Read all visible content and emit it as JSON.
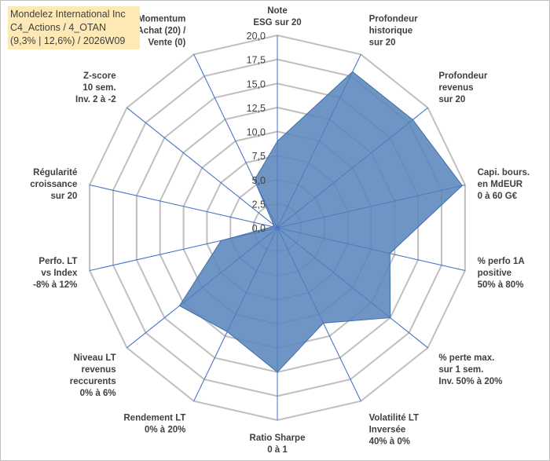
{
  "header": {
    "line1": "Mondelez International Inc",
    "line2": "C4_Actions / 4_OTAN",
    "line3": "(9,3% | 12,6%) / 2026W09"
  },
  "colors": {
    "fill": "#5b86bd",
    "stroke": "#3f6fa8",
    "grid": "#bfbfbf",
    "spoke": "#4472c4",
    "text": "#404040",
    "title_bg": "#fde9b6"
  },
  "chart_data": {
    "type": "radar",
    "rmin": 0,
    "rmax": 20,
    "step": 2.5,
    "tick_labels": [
      "0,0",
      "2,5",
      "5,0",
      "7,5",
      "10,0",
      "12,5",
      "15,0",
      "17,5",
      "20,0"
    ],
    "axes": [
      [
        "Note",
        "ESG sur 20"
      ],
      [
        "Profondeur",
        "historique",
        "sur 20"
      ],
      [
        "Profondeur",
        "revenus",
        "sur 20"
      ],
      [
        "Capi. bours.",
        "en MdEUR",
        "0 à 60 G€"
      ],
      [
        "% perfo 1A",
        "positive",
        "50% à 80%"
      ],
      [
        "% perte max.",
        "sur 1 sem.",
        "Inv. 50% à 20%"
      ],
      [
        "Volatilité LT",
        "Inversée",
        "40% à 0%"
      ],
      [
        "Ratio Sharpe",
        "0 à 1"
      ],
      [
        "Rendement LT",
        "0% à 20%"
      ],
      [
        "Niveau LT",
        "revenus",
        "reccurents",
        "0% à 6%"
      ],
      [
        "Perfo. LT",
        "vs Index",
        "-8% à 12%"
      ],
      [
        "Régularité",
        "croissance",
        "sur 20"
      ],
      [
        "Z-score",
        "10 sem.",
        "Inv. 2 à -2"
      ],
      [
        "Momentum",
        "Achat (20) /",
        "Vente (0)"
      ]
    ],
    "values": [
      9.0,
      18.0,
      18.0,
      19.7,
      12.0,
      15.0,
      11.0,
      15.0,
      12.0,
      13.0,
      6.0,
      0.5,
      0.5,
      5.5
    ]
  }
}
